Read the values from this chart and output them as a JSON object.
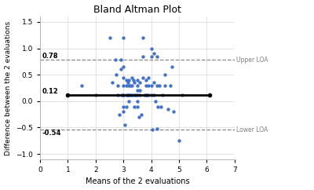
{
  "title": "Bland Altman Plot",
  "xlabel": "Means of the 2 evaluations",
  "ylabel": "Difference between the 2 evaluations",
  "mean_line": 0.12,
  "upper_loa": 0.78,
  "lower_loa": -0.54,
  "xlim": [
    0,
    7
  ],
  "ylim": [
    -1.1,
    1.6
  ],
  "xticks": [
    0,
    1,
    2,
    3,
    4,
    5,
    6,
    7
  ],
  "yticks": [
    -1.0,
    -0.5,
    0.0,
    0.5,
    1.0,
    1.5
  ],
  "line_color": "black",
  "dashed_color": "#888888",
  "dot_color": "#4472C4",
  "label_upper": "Upper LOA",
  "label_lower": "Lower LOA",
  "mean_label": "0.12",
  "upper_label": "0.78",
  "lower_label": "-0.54",
  "mean_line_xstart": 1.0,
  "mean_line_xend": 6.1,
  "scatter_x": [
    1.5,
    2.0,
    2.5,
    2.6,
    2.7,
    2.75,
    2.8,
    2.8,
    2.85,
    2.9,
    2.9,
    2.95,
    3.0,
    3.0,
    3.0,
    3.0,
    3.0,
    3.0,
    3.0,
    3.0,
    3.05,
    3.1,
    3.1,
    3.1,
    3.1,
    3.15,
    3.15,
    3.2,
    3.2,
    3.2,
    3.2,
    3.25,
    3.25,
    3.3,
    3.3,
    3.3,
    3.35,
    3.4,
    3.4,
    3.4,
    3.45,
    3.5,
    3.5,
    3.5,
    3.5,
    3.5,
    3.5,
    3.55,
    3.6,
    3.6,
    3.6,
    3.65,
    3.7,
    3.7,
    3.7,
    3.75,
    3.8,
    3.8,
    3.8,
    3.85,
    3.9,
    3.9,
    3.9,
    4.0,
    4.0,
    4.0,
    4.0,
    4.05,
    4.1,
    4.1,
    4.1,
    4.15,
    4.2,
    4.2,
    4.2,
    4.25,
    4.3,
    4.35,
    4.4,
    4.5,
    4.5,
    4.6,
    4.7,
    4.75,
    4.8,
    5.0,
    5.1,
    6.1
  ],
  "scatter_y": [
    0.3,
    0.12,
    1.2,
    0.35,
    0.78,
    0.5,
    0.3,
    0.12,
    -0.25,
    0.78,
    0.6,
    0.12,
    1.2,
    0.65,
    0.45,
    0.3,
    0.12,
    0.12,
    -0.1,
    -0.2,
    -0.45,
    0.4,
    0.3,
    0.12,
    -0.1,
    0.35,
    0.12,
    0.4,
    0.3,
    0.12,
    0.0,
    0.3,
    0.12,
    0.45,
    0.3,
    0.12,
    0.4,
    0.35,
    0.12,
    -0.1,
    0.12,
    0.4,
    0.3,
    0.2,
    0.12,
    0.0,
    -0.1,
    -0.3,
    0.35,
    0.2,
    0.12,
    -0.25,
    1.2,
    0.85,
    0.45,
    0.12,
    0.4,
    0.3,
    0.12,
    0.12,
    0.45,
    0.3,
    0.12,
    1.0,
    0.85,
    0.3,
    0.12,
    -0.54,
    0.9,
    0.35,
    0.12,
    0.0,
    0.85,
    0.3,
    -0.52,
    -0.1,
    0.3,
    -0.1,
    0.12,
    0.5,
    0.3,
    -0.15,
    0.3,
    0.65,
    -0.2,
    -0.75,
    0.12,
    0.12
  ]
}
